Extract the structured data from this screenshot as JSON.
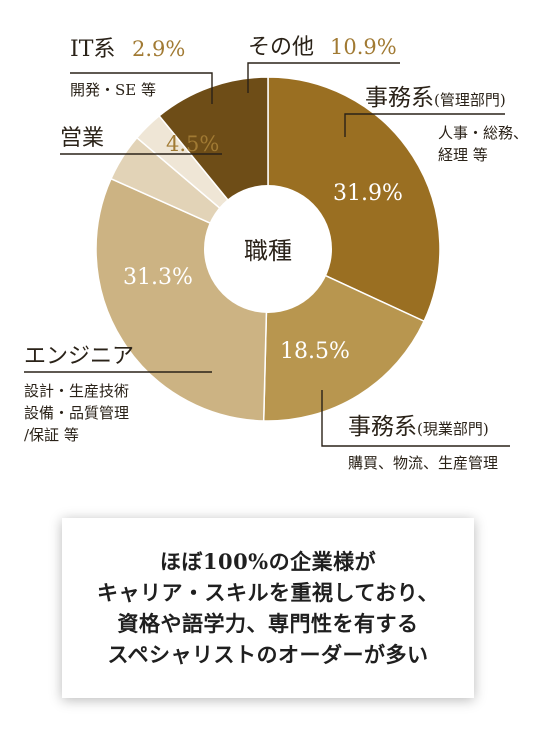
{
  "chart_data": {
    "type": "pie",
    "donut": true,
    "center_label": "職種",
    "slices": [
      {
        "name": "事務系",
        "name_suffix": "(管理部門)",
        "value": 31.9,
        "label": "31.9%",
        "sub": [
          "人事・総務、",
          "経理 等"
        ],
        "color": "#9a6f22"
      },
      {
        "name": "事務系",
        "name_suffix": "(現業部門)",
        "value": 18.5,
        "label": "18.5%",
        "sub": [
          "購買、物流、生産管理"
        ],
        "color": "#b8964f"
      },
      {
        "name": "エンジニア",
        "name_suffix": "",
        "value": 31.3,
        "label": "31.3%",
        "sub": [
          "設計・生産技術",
          "設備・品質管理",
          "/保証 等"
        ],
        "color": "#ccb383"
      },
      {
        "name": "営業",
        "name_suffix": "",
        "value": 4.5,
        "label": "4.5%",
        "sub": [],
        "color": "#e2d3b7"
      },
      {
        "name": "IT系",
        "name_suffix": "",
        "value": 2.9,
        "label": "2.9%",
        "sub": [
          "開発・SE 等"
        ],
        "color": "#efe6d6"
      },
      {
        "name": "その他",
        "name_suffix": "",
        "value": 10.9,
        "label": "10.9%",
        "sub": [],
        "color": "#6e4d17"
      }
    ],
    "percent_color": "#a17a33"
  },
  "note": {
    "lines": [
      "ほぼ100%の企業様が",
      "キャリア・スキルを重視しており、",
      "資格や語学力、専門性を有する",
      "スペシャリストのオーダーが多い"
    ]
  }
}
